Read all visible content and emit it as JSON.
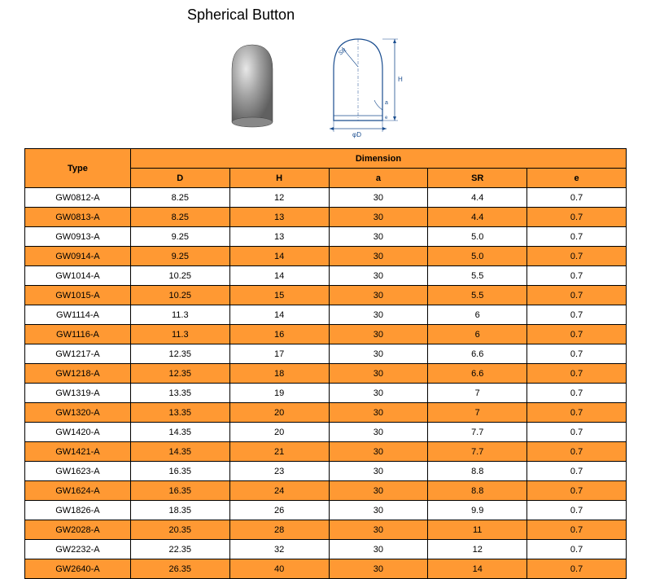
{
  "title": "Spherical Button",
  "table": {
    "header_type": "Type",
    "header_dimension": "Dimension",
    "columns": [
      "D",
      "H",
      "a",
      "SR",
      "e"
    ],
    "rows": [
      {
        "type": "GW0812-A",
        "values": [
          "8.25",
          "12",
          "30",
          "4.4",
          "0.7"
        ],
        "bg": "white"
      },
      {
        "type": "GW0813-A",
        "values": [
          "8.25",
          "13",
          "30",
          "4.4",
          "0.7"
        ],
        "bg": "orange"
      },
      {
        "type": "GW0913-A",
        "values": [
          "9.25",
          "13",
          "30",
          "5.0",
          "0.7"
        ],
        "bg": "white"
      },
      {
        "type": "GW0914-A",
        "values": [
          "9.25",
          "14",
          "30",
          "5.0",
          "0.7"
        ],
        "bg": "orange"
      },
      {
        "type": "GW1014-A",
        "values": [
          "10.25",
          "14",
          "30",
          "5.5",
          "0.7"
        ],
        "bg": "white"
      },
      {
        "type": "GW1015-A",
        "values": [
          "10.25",
          "15",
          "30",
          "5.5",
          "0.7"
        ],
        "bg": "orange"
      },
      {
        "type": "GW1114-A",
        "values": [
          "11.3",
          "14",
          "30",
          "6",
          "0.7"
        ],
        "bg": "white"
      },
      {
        "type": "GW1116-A",
        "values": [
          "11.3",
          "16",
          "30",
          "6",
          "0.7"
        ],
        "bg": "orange"
      },
      {
        "type": "GW1217-A",
        "values": [
          "12.35",
          "17",
          "30",
          "6.6",
          "0.7"
        ],
        "bg": "white"
      },
      {
        "type": "GW1218-A",
        "values": [
          "12.35",
          "18",
          "30",
          "6.6",
          "0.7"
        ],
        "bg": "orange"
      },
      {
        "type": "GW1319-A",
        "values": [
          "13.35",
          "19",
          "30",
          "7",
          "0.7"
        ],
        "bg": "white"
      },
      {
        "type": "GW1320-A",
        "values": [
          "13.35",
          "20",
          "30",
          "7",
          "0.7"
        ],
        "bg": "orange"
      },
      {
        "type": "GW1420-A",
        "values": [
          "14.35",
          "20",
          "30",
          "7.7",
          "0.7"
        ],
        "bg": "white"
      },
      {
        "type": "GW1421-A",
        "values": [
          "14.35",
          "21",
          "30",
          "7.7",
          "0.7"
        ],
        "bg": "orange"
      },
      {
        "type": "GW1623-A",
        "values": [
          "16.35",
          "23",
          "30",
          "8.8",
          "0.7"
        ],
        "bg": "white"
      },
      {
        "type": "GW1624-A",
        "values": [
          "16.35",
          "24",
          "30",
          "8.8",
          "0.7"
        ],
        "bg": "orange"
      },
      {
        "type": "GW1826-A",
        "values": [
          "18.35",
          "26",
          "30",
          "9.9",
          "0.7"
        ],
        "bg": "white"
      },
      {
        "type": "GW2028-A",
        "values": [
          "20.35",
          "28",
          "30",
          "11",
          "0.7"
        ],
        "bg": "orange"
      },
      {
        "type": "GW2232-A",
        "values": [
          "22.35",
          "32",
          "30",
          "12",
          "0.7"
        ],
        "bg": "white"
      },
      {
        "type": "GW2640-A",
        "values": [
          "26.35",
          "40",
          "30",
          "14",
          "0.7"
        ],
        "bg": "orange"
      }
    ]
  },
  "colors": {
    "header_bg": "#ff9933",
    "row_alt_bg": "#ff9933",
    "row_bg": "#ffffff",
    "border": "#000000",
    "text": "#000000"
  },
  "diagram_labels": {
    "sr": "SR",
    "h": "H",
    "a": "a",
    "e": "e",
    "d": "φD"
  }
}
